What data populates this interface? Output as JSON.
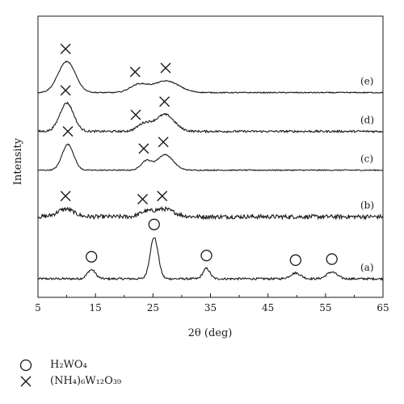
{
  "chart_data": {
    "type": "line",
    "xlabel": "2θ (deg)",
    "ylabel": "Intensity",
    "xlim": [
      5,
      65
    ],
    "xticks": [
      5,
      15,
      25,
      35,
      45,
      55,
      65
    ],
    "xtick_labels": [
      "5",
      "15",
      "25",
      "35",
      "45",
      "55",
      "65"
    ],
    "y_ticks_shown": false,
    "grid": false,
    "series": [
      {
        "name": "(a)",
        "baseline": 0.0,
        "noise": 0.004,
        "peaks": [
          [
            14.3,
            0.035,
            0.7
          ],
          [
            25.2,
            0.16,
            0.7
          ],
          [
            34.3,
            0.04,
            0.6
          ],
          [
            49.8,
            0.022,
            0.9
          ],
          [
            56.1,
            0.026,
            0.9
          ]
        ],
        "markers": [
          [
            14.3,
            "circle"
          ],
          [
            25.2,
            "circle"
          ],
          [
            34.3,
            "circle"
          ],
          [
            49.8,
            "circle"
          ],
          [
            56.1,
            "circle"
          ]
        ]
      },
      {
        "name": "(b)",
        "baseline": 0.24,
        "noise": 0.008,
        "peaks": [
          [
            9.8,
            0.03,
            1.4
          ],
          [
            23.6,
            0.015,
            1.0
          ],
          [
            26.8,
            0.03,
            1.8
          ]
        ],
        "markers": [
          [
            9.8,
            "cross"
          ],
          [
            23.2,
            "cross"
          ],
          [
            26.6,
            "cross"
          ]
        ]
      },
      {
        "name": "(c)",
        "baseline": 0.42,
        "noise": 0.002,
        "peaks": [
          [
            10.2,
            0.1,
            1.0
          ],
          [
            23.8,
            0.035,
            0.9
          ],
          [
            27.1,
            0.06,
            1.4
          ]
        ],
        "markers": [
          [
            10.2,
            "cross"
          ],
          [
            23.4,
            "cross"
          ],
          [
            26.8,
            "cross"
          ]
        ]
      },
      {
        "name": "(d)",
        "baseline": 0.57,
        "noise": 0.004,
        "peaks": [
          [
            10.0,
            0.11,
            1.2
          ],
          [
            23.5,
            0.03,
            1.2
          ],
          [
            27.1,
            0.065,
            1.6
          ]
        ],
        "markers": [
          [
            9.8,
            "cross"
          ],
          [
            22.0,
            "cross"
          ],
          [
            27.0,
            "cross"
          ]
        ]
      },
      {
        "name": "(e)",
        "baseline": 0.72,
        "noise": 0.002,
        "peaks": [
          [
            10.0,
            0.12,
            1.5
          ],
          [
            22.5,
            0.03,
            1.5
          ],
          [
            27.3,
            0.045,
            2.2
          ]
        ],
        "markers": [
          [
            9.8,
            "cross"
          ],
          [
            21.9,
            "cross"
          ],
          [
            27.2,
            "cross"
          ]
        ]
      }
    ],
    "legend": [
      {
        "symbol": "circle",
        "label": "H₂WO₄"
      },
      {
        "symbol": "cross",
        "label": "(NH₄)₆W₁₂O₃₉"
      }
    ]
  }
}
